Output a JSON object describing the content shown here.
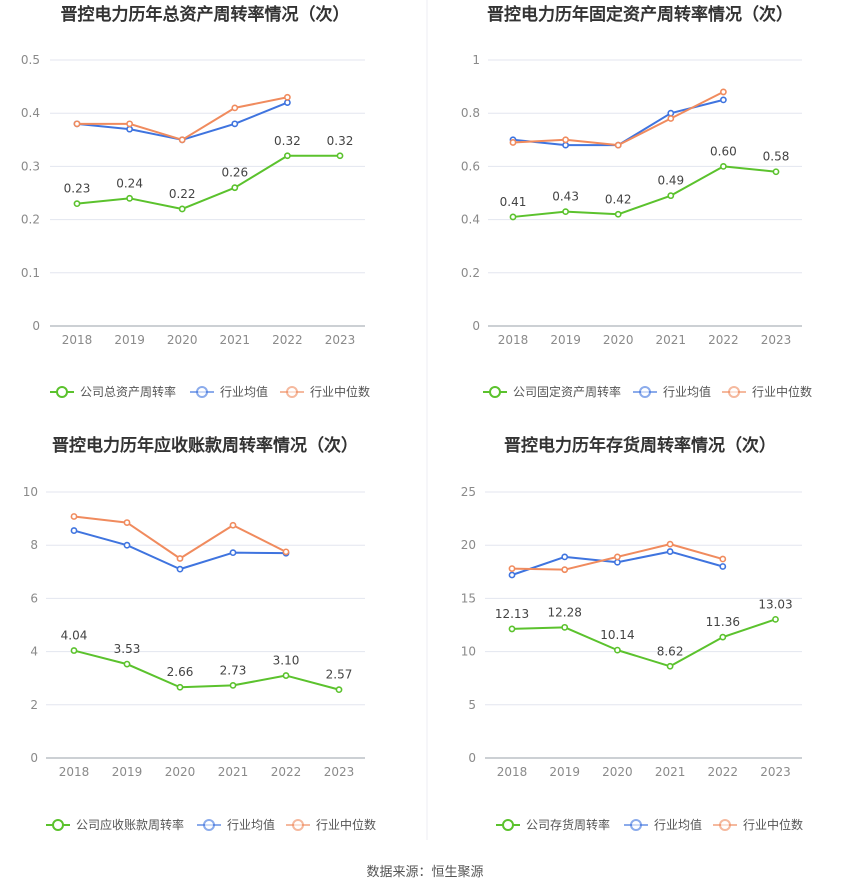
{
  "footer": {
    "source": "数据来源：恒生聚源"
  },
  "legend": {
    "industry_avg": "行业均值",
    "industry_median": "行业中位数"
  },
  "colors": {
    "company": "#5bc22d",
    "industry_avg": "#3f74df",
    "industry_median": "#f08b5e",
    "grid": "#e3e6ef",
    "axis": "#9aa0aa"
  },
  "chart_data": [
    {
      "type": "line",
      "title": "晋控电力历年总资产周转率情况（次）",
      "categories": [
        "2018",
        "2019",
        "2020",
        "2021",
        "2022",
        "2023"
      ],
      "ylim": [
        0,
        0.5
      ],
      "yticks": [
        "0",
        "0.1",
        "0.2",
        "0.3",
        "0.4",
        "0.5"
      ],
      "series": [
        {
          "name": "公司总资产周转率",
          "role": "company",
          "values": [
            0.23,
            0.24,
            0.22,
            0.26,
            0.32,
            0.32
          ],
          "labels": [
            "0.23",
            "0.24",
            "0.22",
            "0.26",
            "0.32",
            "0.32"
          ]
        },
        {
          "name": "行业均值",
          "role": "industry_avg",
          "values": [
            0.38,
            0.37,
            0.35,
            0.38,
            0.42,
            null
          ]
        },
        {
          "name": "行业中位数",
          "role": "industry_median",
          "values": [
            0.38,
            0.38,
            0.35,
            0.41,
            0.43,
            null
          ]
        }
      ]
    },
    {
      "type": "line",
      "title": "晋控电力历年固定资产周转率情况（次）",
      "categories": [
        "2018",
        "2019",
        "2020",
        "2021",
        "2022",
        "2023"
      ],
      "ylim": [
        0,
        1
      ],
      "yticks": [
        "0",
        "0.2",
        "0.4",
        "0.6",
        "0.8",
        "1"
      ],
      "series": [
        {
          "name": "公司固定资产周转率",
          "role": "company",
          "values": [
            0.41,
            0.43,
            0.42,
            0.49,
            0.6,
            0.58
          ],
          "labels": [
            "0.41",
            "0.43",
            "0.42",
            "0.49",
            "0.60",
            "0.58"
          ]
        },
        {
          "name": "行业均值",
          "role": "industry_avg",
          "values": [
            0.7,
            0.68,
            0.68,
            0.8,
            0.85,
            null
          ]
        },
        {
          "name": "行业中位数",
          "role": "industry_median",
          "values": [
            0.69,
            0.7,
            0.68,
            0.78,
            0.88,
            null
          ]
        }
      ]
    },
    {
      "type": "line",
      "title": "晋控电力历年应收账款周转率情况（次）",
      "categories": [
        "2018",
        "2019",
        "2020",
        "2021",
        "2022",
        "2023"
      ],
      "ylim": [
        0,
        10
      ],
      "yticks": [
        "0",
        "2",
        "4",
        "6",
        "8",
        "10"
      ],
      "series": [
        {
          "name": "公司应收账款周转率",
          "role": "company",
          "values": [
            4.04,
            3.53,
            2.66,
            2.73,
            3.1,
            2.57
          ],
          "labels": [
            "4.04",
            "3.53",
            "2.66",
            "2.73",
            "3.10",
            "2.57"
          ]
        },
        {
          "name": "行业均值",
          "role": "industry_avg",
          "values": [
            8.55,
            8.0,
            7.1,
            7.72,
            7.7,
            null
          ]
        },
        {
          "name": "行业中位数",
          "role": "industry_median",
          "values": [
            9.08,
            8.85,
            7.5,
            8.75,
            7.75,
            null
          ]
        }
      ]
    },
    {
      "type": "line",
      "title": "晋控电力历年存货周转率情况（次）",
      "categories": [
        "2018",
        "2019",
        "2020",
        "2021",
        "2022",
        "2023"
      ],
      "ylim": [
        0,
        25
      ],
      "yticks": [
        "0",
        "5",
        "10",
        "15",
        "20",
        "25"
      ],
      "series": [
        {
          "name": "公司存货周转率",
          "role": "company",
          "values": [
            12.13,
            12.28,
            10.14,
            8.62,
            11.36,
            13.03
          ],
          "labels": [
            "12.13",
            "12.28",
            "10.14",
            "8.62",
            "11.36",
            "13.03"
          ]
        },
        {
          "name": "行业均值",
          "role": "industry_avg",
          "values": [
            17.2,
            18.9,
            18.4,
            19.4,
            18.0,
            null
          ]
        },
        {
          "name": "行业中位数",
          "role": "industry_median",
          "values": [
            17.8,
            17.7,
            18.9,
            20.1,
            18.7,
            null
          ]
        }
      ]
    }
  ]
}
